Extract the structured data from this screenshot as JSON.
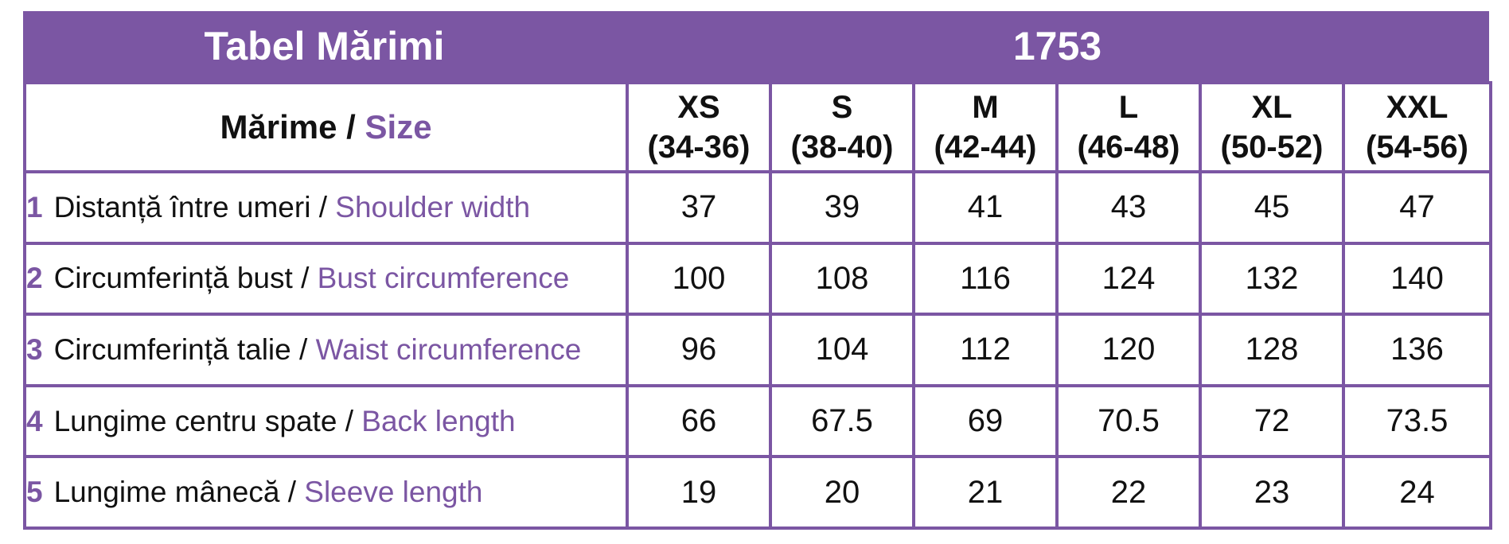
{
  "header": {
    "title": "Tabel Mărimi",
    "code": "1753"
  },
  "table": {
    "label_header": {
      "ro": "Mărime",
      "sep": " / ",
      "en": "Size"
    },
    "sizes": [
      {
        "name": "XS",
        "range": "(34-36)"
      },
      {
        "name": "S",
        "range": "(38-40)"
      },
      {
        "name": "M",
        "range": "(42-44)"
      },
      {
        "name": "L",
        "range": "(46-48)"
      },
      {
        "name": "XL",
        "range": "(50-52)"
      },
      {
        "name": "XXL",
        "range": "(54-56)"
      }
    ],
    "rows": [
      {
        "num": "1",
        "ro": "Distanță între umeri",
        "sep": " / ",
        "en": "Shoulder width",
        "values": [
          "37",
          "39",
          "41",
          "43",
          "45",
          "47"
        ]
      },
      {
        "num": "2",
        "ro": "Circumferință bust",
        "sep": " / ",
        "en": "Bust circumference",
        "values": [
          "100",
          "108",
          "116",
          "124",
          "132",
          "140"
        ]
      },
      {
        "num": "3",
        "ro": "Circumferință talie",
        "sep": " / ",
        "en": "Waist circumference",
        "values": [
          "96",
          "104",
          "112",
          "120",
          "128",
          "136"
        ]
      },
      {
        "num": "4",
        "ro": "Lungime centru spate",
        "sep": " / ",
        "en": "Back length",
        "values": [
          "66",
          "67.5",
          "69",
          "70.5",
          "72",
          "73.5"
        ]
      },
      {
        "num": "5",
        "ro": "Lungime mânecă",
        "sep": " / ",
        "en": "Sleeve length",
        "values": [
          "19",
          "20",
          "21",
          "22",
          "23",
          "24"
        ]
      }
    ]
  },
  "colors": {
    "accent": "#7b56a3",
    "text": "#111111",
    "header_text": "#ffffff"
  }
}
